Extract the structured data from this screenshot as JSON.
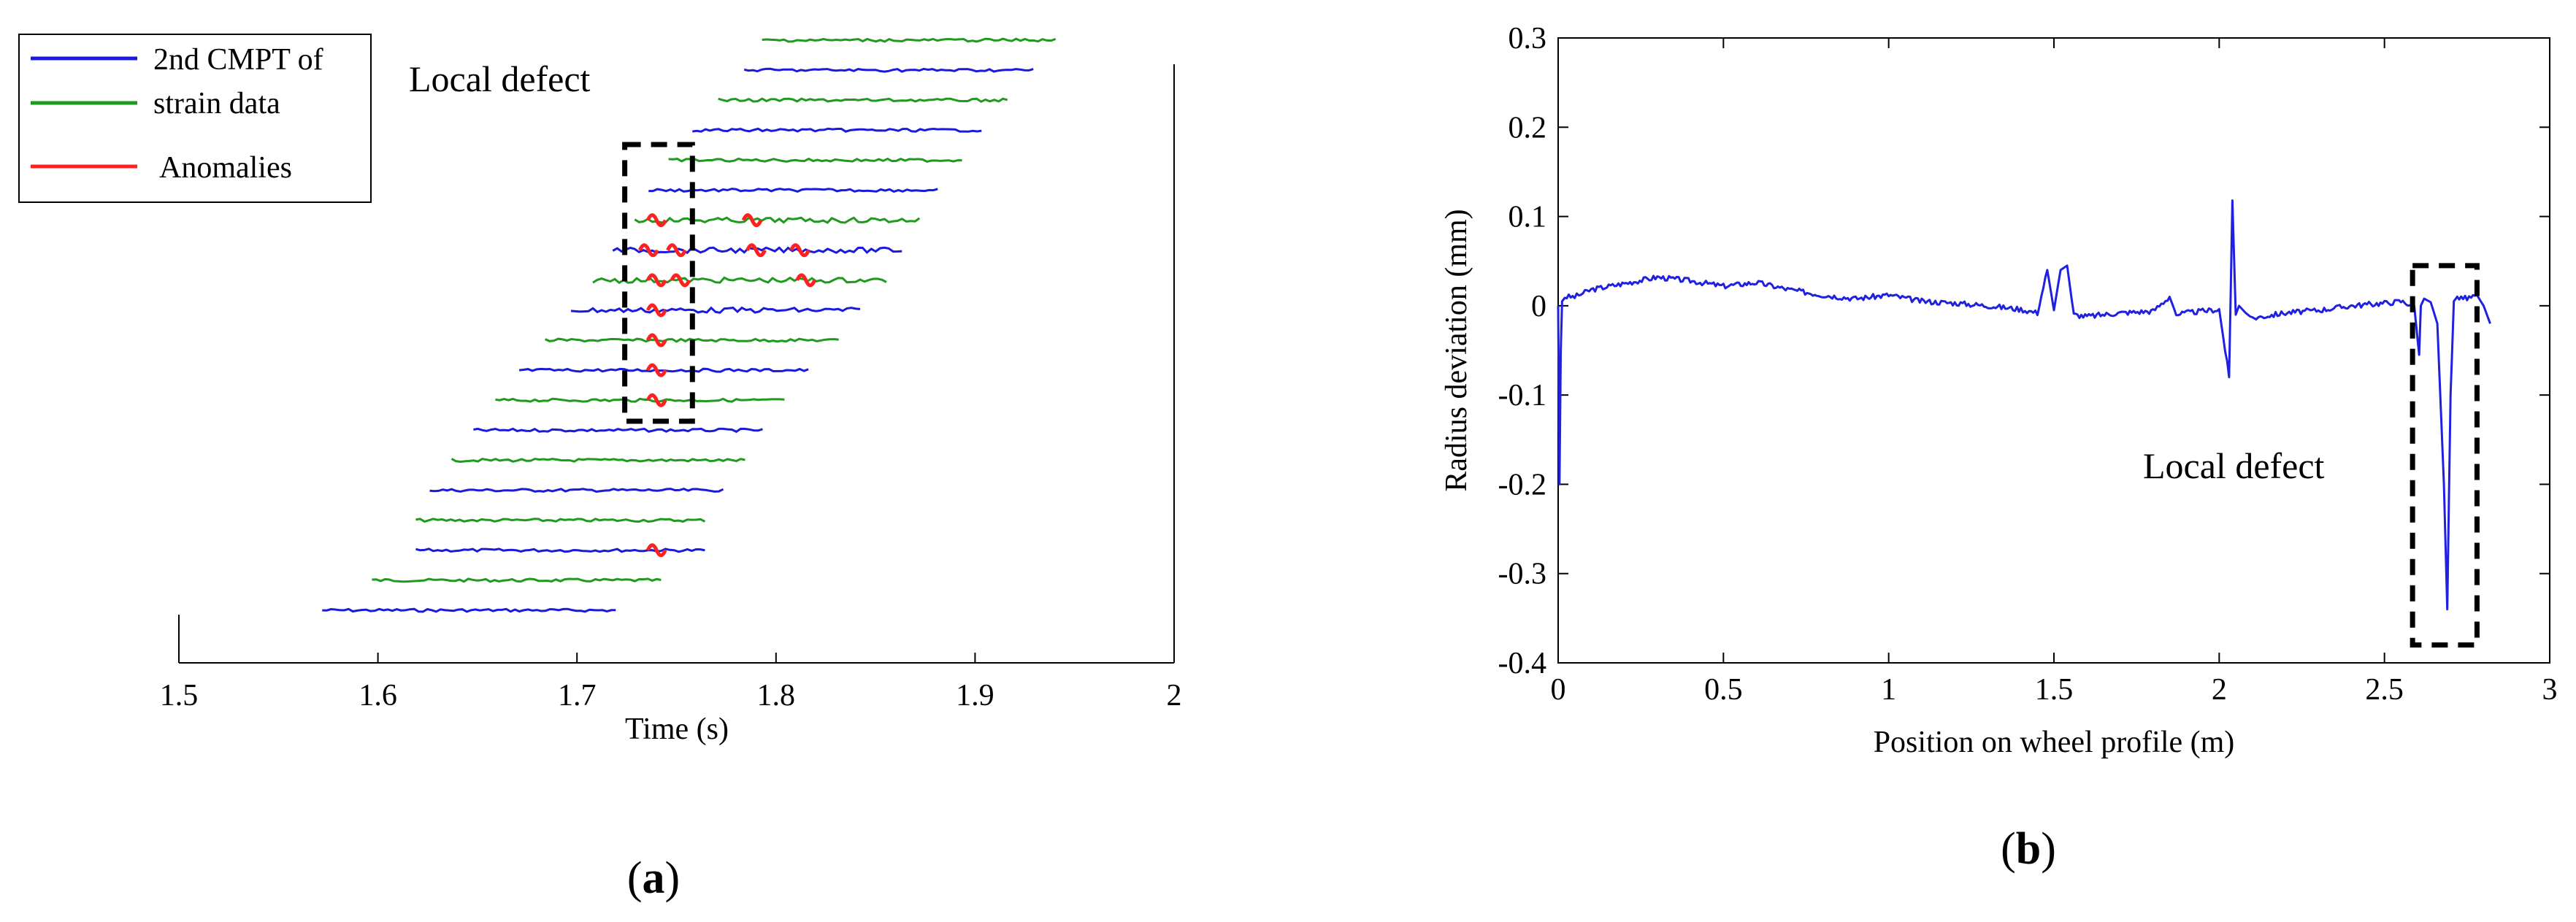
{
  "figure": {
    "panels": [
      {
        "id": "a",
        "open": "(",
        "letter": "a",
        "close": ")"
      },
      {
        "id": "b",
        "open": "(",
        "letter": "b",
        "close": ")"
      }
    ]
  },
  "chart_data": [
    {
      "panel": "a",
      "type": "line",
      "xlabel": "Time (s)",
      "ylabel": "",
      "xlim": [
        1.5,
        2.0
      ],
      "x_ticks": [
        "1.5",
        "1.6",
        "1.7",
        "1.8",
        "1.9",
        "2"
      ],
      "grid": false,
      "legend_position": "top-left",
      "legend": [
        {
          "lines": [
            "2nd CMPT of",
            "strain data"
          ],
          "colors": [
            "#1a1adc",
            "#1f9a1f"
          ]
        },
        {
          "lines": [
            "Anomalies"
          ],
          "colors": [
            "#ff2020"
          ]
        }
      ],
      "annotation": "Local defect",
      "defect_region_x": [
        1.724,
        1.758
      ],
      "defect_time": 1.74,
      "colors": {
        "cmpt": "#1a1adc",
        "strain": "#1f9a1f",
        "anomaly": "#ff2020"
      },
      "traces": [
        {
          "kind": "cmpt",
          "start": 1.572,
          "end": 1.72,
          "anomalies": []
        },
        {
          "kind": "strain",
          "start": 1.597,
          "end": 1.743,
          "anomalies": []
        },
        {
          "kind": "cmpt",
          "start": 1.619,
          "end": 1.766,
          "anomalies": [
            1.74
          ]
        },
        {
          "kind": "strain",
          "start": 1.619,
          "end": 1.766,
          "anomalies": []
        },
        {
          "kind": "cmpt",
          "start": 1.626,
          "end": 1.775,
          "anomalies": []
        },
        {
          "kind": "strain",
          "start": 1.637,
          "end": 1.785,
          "anomalies": []
        },
        {
          "kind": "cmpt",
          "start": 1.648,
          "end": 1.795,
          "anomalies": []
        },
        {
          "kind": "strain",
          "start": 1.659,
          "end": 1.806,
          "anomalies": [
            1.74
          ]
        },
        {
          "kind": "cmpt",
          "start": 1.671,
          "end": 1.818,
          "anomalies": [
            1.74
          ]
        },
        {
          "kind": "strain",
          "start": 1.684,
          "end": 1.832,
          "anomalies": [
            1.74
          ]
        },
        {
          "kind": "cmpt",
          "start": 1.697,
          "end": 1.844,
          "anomalies": [
            1.74
          ]
        },
        {
          "kind": "strain",
          "start": 1.708,
          "end": 1.856,
          "anomalies": [
            1.74,
            1.752,
            1.815
          ]
        },
        {
          "kind": "cmpt",
          "start": 1.718,
          "end": 1.865,
          "anomalies": [
            1.736,
            1.75,
            1.79,
            1.812
          ]
        },
        {
          "kind": "strain",
          "start": 1.729,
          "end": 1.873,
          "anomalies": [
            1.74,
            1.788
          ]
        },
        {
          "kind": "cmpt",
          "start": 1.736,
          "end": 1.883,
          "anomalies": []
        },
        {
          "kind": "strain",
          "start": 1.746,
          "end": 1.894,
          "anomalies": []
        },
        {
          "kind": "cmpt",
          "start": 1.758,
          "end": 1.905,
          "anomalies": []
        },
        {
          "kind": "strain",
          "start": 1.771,
          "end": 1.918,
          "anomalies": []
        },
        {
          "kind": "cmpt",
          "start": 1.784,
          "end": 1.931,
          "anomalies": []
        },
        {
          "kind": "strain",
          "start": 1.793,
          "end": 1.941,
          "anomalies": []
        }
      ]
    },
    {
      "panel": "b",
      "type": "line",
      "xlabel": "Position on wheel profile (m)",
      "ylabel": "Radius deviation (mm)",
      "xlim": [
        0,
        3
      ],
      "ylim": [
        -0.4,
        0.3
      ],
      "x_ticks": [
        "0",
        "0.5",
        "1",
        "1.5",
        "2",
        "2.5",
        "3"
      ],
      "y_ticks": [
        "-0.4",
        "-0.3",
        "-0.2",
        "-0.1",
        "0",
        "0.1",
        "0.2",
        "0.3"
      ],
      "grid": false,
      "annotation": "Local defect",
      "defect_region_x": [
        2.585,
        2.78
      ],
      "defect_region_y": [
        -0.38,
        0.045
      ],
      "line_color": "#2020e0",
      "series": [
        {
          "x": [
            0,
            0.004,
            0.008,
            0.012,
            0.02,
            0.05,
            0.1,
            0.2,
            0.3,
            0.4,
            0.5,
            0.6,
            0.7,
            0.8,
            0.9,
            1.0,
            1.1,
            1.2,
            1.3,
            1.4,
            1.45,
            1.48,
            1.5,
            1.52,
            1.54,
            1.56,
            1.6,
            1.7,
            1.8,
            1.85,
            1.87,
            1.9,
            1.95,
            2.0,
            2.03,
            2.04,
            2.05,
            2.06,
            2.08,
            2.1,
            2.2,
            2.3,
            2.4,
            2.5,
            2.55,
            2.59,
            2.605,
            2.61,
            2.62,
            2.64,
            2.66,
            2.68,
            2.69,
            2.7,
            2.71,
            2.72,
            2.75,
            2.78,
            2.8,
            2.82
          ],
          "y": [
            0.0,
            -0.2,
            -0.05,
            0.005,
            0.01,
            0.01,
            0.018,
            0.025,
            0.032,
            0.028,
            0.022,
            0.026,
            0.018,
            0.012,
            0.008,
            0.012,
            0.005,
            0.003,
            0.0,
            -0.004,
            -0.008,
            0.04,
            -0.005,
            0.04,
            0.045,
            -0.01,
            -0.012,
            -0.008,
            -0.006,
            0.01,
            -0.01,
            -0.008,
            -0.006,
            -0.004,
            -0.08,
            0.118,
            -0.01,
            0.0,
            -0.008,
            -0.014,
            -0.008,
            -0.005,
            0.0,
            0.003,
            0.005,
            0.0,
            -0.055,
            0.0,
            0.008,
            0.004,
            -0.02,
            -0.2,
            -0.34,
            -0.1,
            0.005,
            0.01,
            0.008,
            0.012,
            0.0,
            -0.02
          ]
        }
      ]
    }
  ]
}
